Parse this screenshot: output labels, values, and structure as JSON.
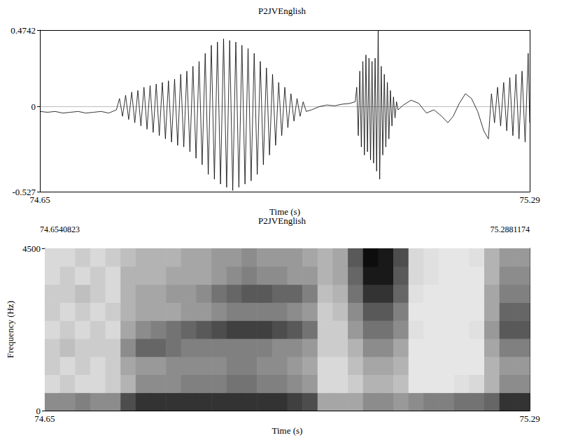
{
  "chart_data": [
    {
      "type": "line",
      "title": "P2JVEnglish",
      "x_label": "Time (s)",
      "xlim": [
        74.65,
        75.29
      ],
      "xticks": [
        74.65,
        75.29
      ],
      "ylim": [
        -0.527,
        0.4742
      ],
      "yticks": [
        -0.527,
        0,
        0.4742
      ],
      "grid": true,
      "color": "#000000",
      "x": [
        74.65,
        74.66,
        74.67,
        74.68,
        74.69,
        74.7,
        74.71,
        74.72,
        74.73,
        74.74,
        74.75,
        74.754,
        74.758,
        74.762,
        74.766,
        74.77,
        74.774,
        74.778,
        74.782,
        74.786,
        74.79,
        74.794,
        74.798,
        74.802,
        74.806,
        74.81,
        74.814,
        74.818,
        74.822,
        74.826,
        74.83,
        74.834,
        74.838,
        74.842,
        74.846,
        74.85,
        74.854,
        74.858,
        74.862,
        74.866,
        74.87,
        74.874,
        74.878,
        74.882,
        74.886,
        74.89,
        74.894,
        74.898,
        74.902,
        74.906,
        74.91,
        74.914,
        74.918,
        74.922,
        74.926,
        74.93,
        74.934,
        74.938,
        74.942,
        74.946,
        74.95,
        74.954,
        74.958,
        74.962,
        74.966,
        74.97,
        74.974,
        74.978,
        74.982,
        74.986,
        74.99,
        74.994,
        74.998,
        75.005,
        75.015,
        75.025,
        75.035,
        75.045,
        75.055,
        75.062,
        75.064,
        75.066,
        75.068,
        75.07,
        75.072,
        75.074,
        75.076,
        75.078,
        75.08,
        75.082,
        75.084,
        75.086,
        75.088,
        75.09,
        75.092,
        75.094,
        75.096,
        75.098,
        75.1,
        75.102,
        75.104,
        75.106,
        75.108,
        75.11,
        75.112,
        75.114,
        75.116,
        75.118,
        75.125,
        75.135,
        75.145,
        75.155,
        75.165,
        75.175,
        75.183,
        75.19,
        75.198,
        75.206,
        75.214,
        75.222,
        75.23,
        75.236,
        75.24,
        75.244,
        75.248,
        75.252,
        75.256,
        75.26,
        75.264,
        75.268,
        75.272,
        75.276,
        75.28,
        75.284,
        75.288,
        75.29
      ],
      "values": [
        -0.03,
        -0.035,
        -0.03,
        -0.04,
        -0.035,
        -0.03,
        -0.04,
        -0.035,
        -0.03,
        -0.04,
        -0.02,
        0.05,
        -0.06,
        0.07,
        -0.08,
        0.09,
        -0.1,
        0.1,
        -0.12,
        0.12,
        -0.14,
        0.13,
        -0.16,
        0.14,
        -0.18,
        0.15,
        -0.2,
        0.16,
        -0.22,
        0.17,
        -0.24,
        0.2,
        -0.25,
        0.22,
        -0.28,
        0.25,
        -0.32,
        0.28,
        -0.36,
        0.33,
        -0.42,
        0.38,
        -0.45,
        0.4,
        -0.48,
        0.42,
        -0.5,
        0.41,
        -0.52,
        0.4,
        -0.5,
        0.38,
        -0.48,
        0.36,
        -0.46,
        0.33,
        -0.42,
        0.28,
        -0.36,
        0.24,
        -0.3,
        0.2,
        -0.24,
        0.15,
        -0.18,
        0.12,
        -0.13,
        0.08,
        -0.09,
        0.05,
        -0.06,
        0.03,
        -0.03,
        -0.02,
        0,
        0.01,
        0.005,
        0.015,
        0.02,
        0.03,
        0.12,
        -0.18,
        0.22,
        -0.25,
        0.28,
        -0.3,
        0.32,
        -0.28,
        0.3,
        -0.33,
        0.28,
        -0.35,
        0.3,
        -0.4,
        0.4742,
        -0.45,
        0.25,
        -0.3,
        0.2,
        -0.25,
        0.15,
        -0.2,
        0.1,
        -0.12,
        0.06,
        -0.07,
        0.03,
        -0.02,
        0.01,
        0.04,
        0.02,
        -0.04,
        -0.02,
        -0.06,
        -0.1,
        -0.06,
        0.02,
        0.08,
        0.05,
        -0.03,
        -0.15,
        -0.2,
        0.08,
        -0.1,
        0.12,
        -0.12,
        0.15,
        -0.15,
        0.18,
        -0.18,
        0.2,
        -0.2,
        0.22,
        -0.22,
        0.33,
        -0.1
      ]
    },
    {
      "type": "heatmap",
      "title": "P2JVEnglish",
      "annotations": [
        "74.6540823",
        "75.2881174"
      ],
      "x_label": "Time (s)",
      "y_label": "Frequency (Hz)",
      "xlim": [
        74.65,
        75.29
      ],
      "xticks": [
        74.65,
        75.29
      ],
      "ylim": [
        0,
        4500
      ],
      "yticks": [
        0,
        4500
      ],
      "zlim": [
        0,
        1
      ],
      "time_bins": [
        74.65,
        74.67,
        74.69,
        74.71,
        74.73,
        74.75,
        74.77,
        74.79,
        74.81,
        74.83,
        74.85,
        74.87,
        74.89,
        74.91,
        74.93,
        74.95,
        74.97,
        74.99,
        75.01,
        75.03,
        75.05,
        75.07,
        75.09,
        75.11,
        75.13,
        75.15,
        75.17,
        75.19,
        75.21,
        75.23,
        75.25,
        75.27,
        75.29
      ],
      "freq_bins": [
        0,
        500,
        1000,
        1500,
        2000,
        2500,
        3000,
        3500,
        4000,
        4500
      ],
      "cells": [
        [
          0.45,
          0.15,
          0.2,
          0.2,
          0.15,
          0.2,
          0.2,
          0.15,
          0.15
        ],
        [
          0.45,
          0.2,
          0.15,
          0.25,
          0.2,
          0.15,
          0.2,
          0.2,
          0.15
        ],
        [
          0.5,
          0.15,
          0.2,
          0.2,
          0.15,
          0.2,
          0.25,
          0.15,
          0.2
        ],
        [
          0.45,
          0.15,
          0.15,
          0.2,
          0.2,
          0.15,
          0.2,
          0.2,
          0.15
        ],
        [
          0.45,
          0.2,
          0.2,
          0.2,
          0.15,
          0.2,
          0.15,
          0.15,
          0.2
        ],
        [
          0.7,
          0.3,
          0.35,
          0.45,
          0.35,
          0.3,
          0.3,
          0.3,
          0.25
        ],
        [
          0.8,
          0.45,
          0.4,
          0.6,
          0.45,
          0.35,
          0.35,
          0.3,
          0.3
        ],
        [
          0.8,
          0.45,
          0.4,
          0.6,
          0.5,
          0.35,
          0.35,
          0.3,
          0.3
        ],
        [
          0.8,
          0.45,
          0.45,
          0.55,
          0.55,
          0.35,
          0.4,
          0.35,
          0.3
        ],
        [
          0.8,
          0.5,
          0.45,
          0.5,
          0.6,
          0.4,
          0.4,
          0.35,
          0.35
        ],
        [
          0.8,
          0.5,
          0.45,
          0.5,
          0.65,
          0.4,
          0.45,
          0.35,
          0.35
        ],
        [
          0.8,
          0.5,
          0.45,
          0.5,
          0.7,
          0.45,
          0.55,
          0.4,
          0.4
        ],
        [
          0.8,
          0.55,
          0.5,
          0.5,
          0.75,
          0.5,
          0.6,
          0.45,
          0.4
        ],
        [
          0.8,
          0.55,
          0.5,
          0.5,
          0.75,
          0.5,
          0.65,
          0.5,
          0.45
        ],
        [
          0.8,
          0.5,
          0.45,
          0.5,
          0.75,
          0.5,
          0.65,
          0.45,
          0.4
        ],
        [
          0.8,
          0.5,
          0.45,
          0.45,
          0.7,
          0.5,
          0.6,
          0.45,
          0.4
        ],
        [
          0.75,
          0.45,
          0.4,
          0.45,
          0.65,
          0.45,
          0.6,
          0.4,
          0.4
        ],
        [
          0.7,
          0.4,
          0.35,
          0.4,
          0.55,
          0.4,
          0.5,
          0.4,
          0.35
        ],
        [
          0.35,
          0.15,
          0.15,
          0.2,
          0.2,
          0.2,
          0.25,
          0.3,
          0.3
        ],
        [
          0.35,
          0.15,
          0.15,
          0.2,
          0.2,
          0.25,
          0.3,
          0.35,
          0.35
        ],
        [
          0.35,
          0.2,
          0.25,
          0.3,
          0.4,
          0.45,
          0.55,
          0.6,
          0.65
        ],
        [
          0.45,
          0.3,
          0.35,
          0.45,
          0.55,
          0.65,
          0.8,
          0.9,
          0.95
        ],
        [
          0.45,
          0.3,
          0.35,
          0.45,
          0.55,
          0.65,
          0.8,
          0.9,
          0.9
        ],
        [
          0.4,
          0.25,
          0.3,
          0.35,
          0.45,
          0.5,
          0.6,
          0.65,
          0.7
        ],
        [
          0.45,
          0.1,
          0.1,
          0.1,
          0.12,
          0.1,
          0.12,
          0.15,
          0.15
        ],
        [
          0.5,
          0.1,
          0.1,
          0.1,
          0.1,
          0.1,
          0.1,
          0.12,
          0.12
        ],
        [
          0.5,
          0.1,
          0.1,
          0.1,
          0.1,
          0.1,
          0.1,
          0.1,
          0.1
        ],
        [
          0.55,
          0.12,
          0.1,
          0.1,
          0.1,
          0.1,
          0.1,
          0.1,
          0.1
        ],
        [
          0.55,
          0.15,
          0.1,
          0.1,
          0.12,
          0.1,
          0.1,
          0.1,
          0.12
        ],
        [
          0.6,
          0.3,
          0.3,
          0.35,
          0.4,
          0.35,
          0.35,
          0.3,
          0.3
        ],
        [
          0.8,
          0.45,
          0.4,
          0.5,
          0.65,
          0.6,
          0.5,
          0.45,
          0.4
        ],
        [
          0.8,
          0.45,
          0.4,
          0.5,
          0.65,
          0.6,
          0.5,
          0.45,
          0.4
        ]
      ]
    }
  ]
}
